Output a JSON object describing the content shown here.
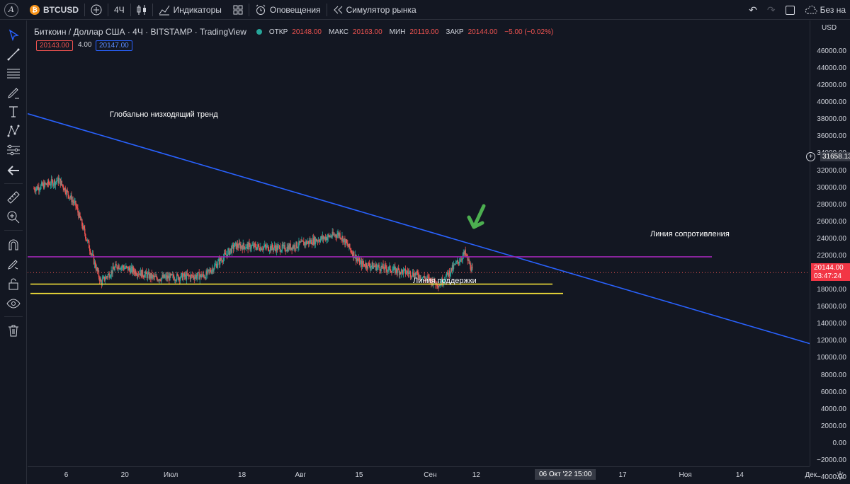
{
  "topbar": {
    "logo": "A",
    "btc_badge": "₿",
    "symbol": "BTCUSD",
    "interval": "4Ч",
    "indicators": "Индикаторы",
    "alerts": "Оповещения",
    "replay": "Симулятор рынка",
    "unnamed": "Без на"
  },
  "legend": {
    "title": "Биткоин / Доллар США · 4Ч · BITSTAMP · TradingView",
    "open_label": "ОТКР",
    "open": "20148.00",
    "high_label": "МАКС",
    "high": "20163.00",
    "low_label": "МИН",
    "low": "20119.00",
    "close_label": "ЗАКР",
    "close": "20144.00",
    "change": "−5.00 (−0.02%)",
    "sell": "20143.00",
    "spread": "4.00",
    "buy": "20147.00"
  },
  "annotations": {
    "trend": "Глобально низходящий тренд",
    "resistance": "Линия сопротивления",
    "support": "Линия поддержки"
  },
  "price_axis": {
    "currency": "USD",
    "ticks": [
      "46000.00",
      "44000.00",
      "42000.00",
      "40000.00",
      "38000.00",
      "36000.00",
      "34000.00",
      "32000.00",
      "30000.00",
      "28000.00",
      "26000.00",
      "24000.00",
      "22000.00",
      "20000.00",
      "18000.00",
      "16000.00",
      "14000.00",
      "12000.00",
      "10000.00",
      "8000.00",
      "6000.00",
      "4000.00",
      "2000.00",
      "0.00",
      "−2000.00",
      "−4000.00"
    ],
    "crosshair_price": "31658.13",
    "current_price": "20144.00",
    "countdown": "03:47:24"
  },
  "time_axis": {
    "labels": [
      "6",
      "20",
      "Июл",
      "18",
      "Авг",
      "15",
      "Сен",
      "12",
      "17",
      "Ноя",
      "14",
      "Дек"
    ],
    "highlight": "06 Окт '22   15:00"
  },
  "chart_data": {
    "type": "candlestick",
    "symbol": "BTCUSD",
    "exchange": "BITSTAMP",
    "interval": "4H",
    "y_range": [
      -5000,
      47000
    ],
    "approx_close_path": [
      {
        "t": "Jun 2",
        "close": 30000
      },
      {
        "t": "Jun 8",
        "close": 31000
      },
      {
        "t": "Jun 12",
        "close": 28000
      },
      {
        "t": "Jun 18",
        "close": 19000
      },
      {
        "t": "Jun 22",
        "close": 21000
      },
      {
        "t": "Jul 1",
        "close": 19500
      },
      {
        "t": "Jul 13",
        "close": 19800
      },
      {
        "t": "Jul 20",
        "close": 23300
      },
      {
        "t": "Aug 1",
        "close": 23000
      },
      {
        "t": "Aug 14",
        "close": 24700
      },
      {
        "t": "Aug 19",
        "close": 21200
      },
      {
        "t": "Sep 1",
        "close": 20000
      },
      {
        "t": "Sep 7",
        "close": 18800
      },
      {
        "t": "Sep 13",
        "close": 22400
      },
      {
        "t": "Sep 15",
        "close": 20144
      }
    ],
    "trend_line": {
      "name": "Глобально низходящий тренд",
      "from": {
        "t": "Jun 1",
        "price": 38800
      },
      "to": {
        "t": "Dec 7",
        "price": 11300
      }
    },
    "resistance_line": {
      "name": "Линия сопротивления",
      "price": 22000
    },
    "support_lines": [
      18800,
      17700
    ],
    "current_price": 20144.0
  }
}
